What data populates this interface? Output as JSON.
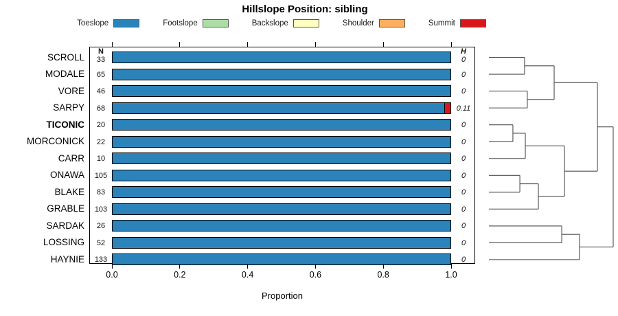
{
  "title": "Hillslope Position: sibling",
  "legend": {
    "items": [
      {
        "label": "Toeslope",
        "color": "#2B83BA"
      },
      {
        "label": "Footslope",
        "color": "#ABDDA4"
      },
      {
        "label": "Backslope",
        "color": "#FFFFBF"
      },
      {
        "label": "Shoulder",
        "color": "#FDAE61"
      },
      {
        "label": "Summit",
        "color": "#D7191C"
      }
    ]
  },
  "chart_data": {
    "type": "bar",
    "orientation": "horizontal_stacked",
    "title": "Hillslope Position: sibling",
    "xlabel": "Proportion",
    "xlim": [
      0,
      1
    ],
    "xticks": [
      "0.0",
      "0.2",
      "0.4",
      "0.6",
      "0.8",
      "1.0"
    ],
    "legend_position": "top",
    "grid": false,
    "col_headers": {
      "n": "N",
      "h": "H"
    },
    "rows": [
      {
        "name": "SCROLL",
        "n": 33,
        "h": "0",
        "bold": false,
        "segments": [
          {
            "class": "Toeslope",
            "p": 1
          }
        ]
      },
      {
        "name": "MODALE",
        "n": 65,
        "h": "0",
        "bold": false,
        "segments": [
          {
            "class": "Toeslope",
            "p": 1
          }
        ]
      },
      {
        "name": "VORE",
        "n": 46,
        "h": "0",
        "bold": false,
        "segments": [
          {
            "class": "Toeslope",
            "p": 1
          }
        ]
      },
      {
        "name": "SARPY",
        "n": 68,
        "h": "0.11",
        "bold": false,
        "segments": [
          {
            "class": "Toeslope",
            "p": 0.981
          },
          {
            "class": "Summit",
            "p": 0.019
          }
        ]
      },
      {
        "name": "TICONIC",
        "n": 20,
        "h": "0",
        "bold": true,
        "segments": [
          {
            "class": "Toeslope",
            "p": 1
          }
        ]
      },
      {
        "name": "MORCONICK",
        "n": 22,
        "h": "0",
        "bold": false,
        "segments": [
          {
            "class": "Toeslope",
            "p": 1
          }
        ]
      },
      {
        "name": "CARR",
        "n": 10,
        "h": "0",
        "bold": false,
        "segments": [
          {
            "class": "Toeslope",
            "p": 1
          }
        ]
      },
      {
        "name": "ONAWA",
        "n": 105,
        "h": "0",
        "bold": false,
        "segments": [
          {
            "class": "Toeslope",
            "p": 1
          }
        ]
      },
      {
        "name": "BLAKE",
        "n": 83,
        "h": "0",
        "bold": false,
        "segments": [
          {
            "class": "Toeslope",
            "p": 1
          }
        ]
      },
      {
        "name": "GRABLE",
        "n": 103,
        "h": "0",
        "bold": false,
        "segments": [
          {
            "class": "Toeslope",
            "p": 1
          }
        ]
      },
      {
        "name": "SARDAK",
        "n": 26,
        "h": "0",
        "bold": false,
        "segments": [
          {
            "class": "Toeslope",
            "p": 1
          }
        ]
      },
      {
        "name": "LOSSING",
        "n": 52,
        "h": "0",
        "bold": false,
        "segments": [
          {
            "class": "Toeslope",
            "p": 1
          }
        ]
      },
      {
        "name": "HAYNIE",
        "n": 133,
        "h": "0",
        "bold": false,
        "segments": [
          {
            "class": "Toeslope",
            "p": 1
          }
        ]
      }
    ],
    "dendrogram": {
      "h": 1.0,
      "c": [
        {
          "h": 0.873,
          "c": [
            {
              "h": 0.525,
              "c": [
                {
                  "h": 0.287,
                  "c": [
                    "SCROLL",
                    "MODALE"
                  ]
                },
                {
                  "h": 0.309,
                  "c": [
                    "VORE",
                    "SARPY"
                  ]
                }
              ]
            },
            {
              "h": 0.608,
              "c": [
                {
                  "h": 0.293,
                  "c": [
                    {
                      "h": 0.193,
                      "c": [
                        "TICONIC",
                        "MORCONICK"
                      ]
                    },
                    "CARR"
                  ]
                },
                {
                  "h": 0.398,
                  "c": [
                    {
                      "h": 0.249,
                      "c": [
                        "ONAWA",
                        "BLAKE"
                      ]
                    },
                    "GRABLE"
                  ]
                }
              ]
            }
          ]
        },
        {
          "h": 0.729,
          "c": [
            {
              "h": 0.586,
              "c": [
                "SARDAK",
                "LOSSING"
              ]
            },
            "HAYNIE"
          ]
        }
      ]
    }
  },
  "style_colors": {
    "bar_border": "#000000",
    "axis": "#000000",
    "dendrogram_line": "#4d4d4d"
  }
}
